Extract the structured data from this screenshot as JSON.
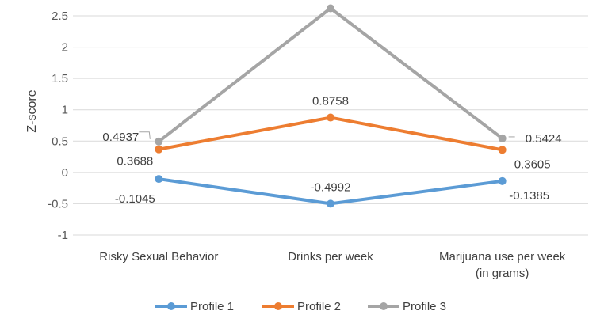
{
  "chart_data": {
    "type": "line",
    "title": "",
    "xlabel": "",
    "ylabel": "Z-score",
    "ylim": [
      -1,
      2.5
    ],
    "yticks": [
      2.5,
      2,
      1.5,
      1,
      0.5,
      0,
      -0.5,
      -1
    ],
    "ytick_labels": [
      "2.5",
      "2",
      "1.5",
      "1",
      "0.5",
      "0",
      "-0.5",
      "-1"
    ],
    "grid": true,
    "legend_position": "bottom",
    "categories": [
      [
        "Risky Sexual Behavior"
      ],
      [
        "Drinks per week"
      ],
      [
        "Marijuana use per week",
        "(in grams)"
      ]
    ],
    "series": [
      {
        "name": "Profile 1",
        "color": "#5b9bd5",
        "values": [
          -0.1045,
          -0.4992,
          -0.1385
        ],
        "labels": [
          "-0.1045",
          "-0.4992",
          "-0.1385"
        ]
      },
      {
        "name": "Profile 2",
        "color": "#ed7d31",
        "values": [
          0.3688,
          0.8758,
          0.3605
        ],
        "labels": [
          "0.3688",
          "0.8758",
          "0.3605"
        ]
      },
      {
        "name": "Profile 3",
        "color": "#a5a5a5",
        "values": [
          0.4937,
          2.62,
          0.5424
        ],
        "labels": [
          "0.4937",
          "",
          "0.5424"
        ]
      }
    ]
  }
}
